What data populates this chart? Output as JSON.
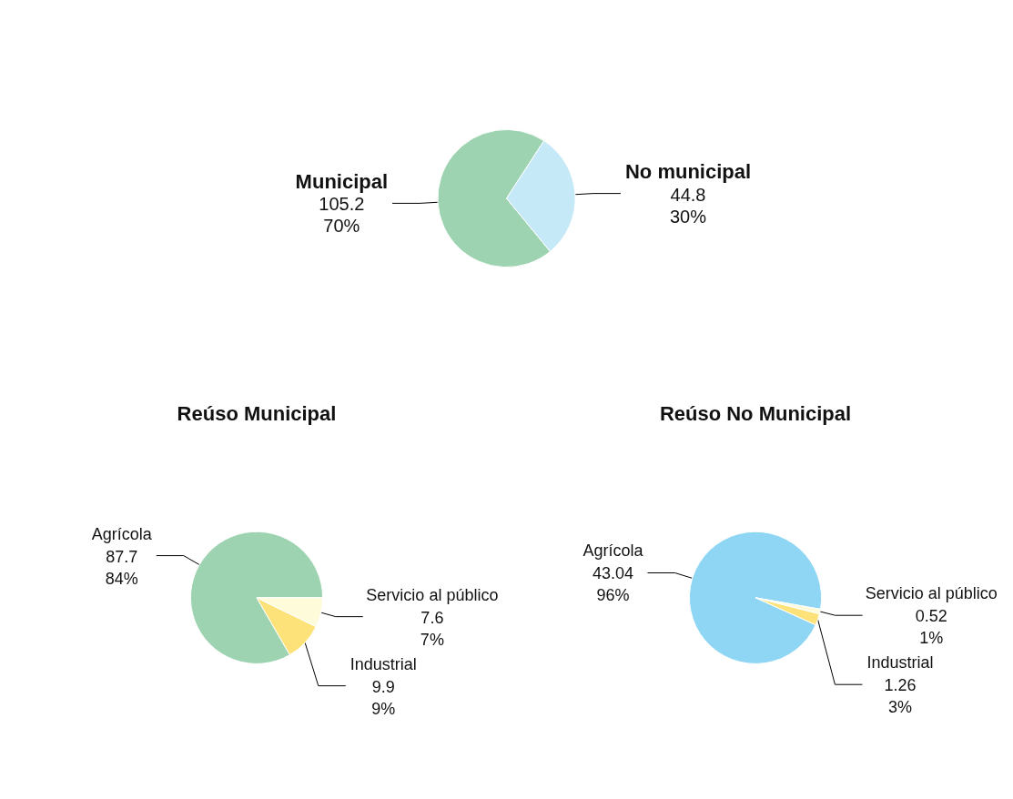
{
  "chart_data": [
    {
      "type": "pie",
      "categories": [
        "Municipal",
        "No municipal"
      ],
      "values": [
        105.2,
        44.8
      ],
      "value_labels": [
        "105.2\n70%",
        "44.8\n30%"
      ],
      "colors": [
        "#9dd3b0",
        "#c6e9f8"
      ],
      "legend": false
    },
    {
      "type": "pie",
      "title": "Reúso Municipal",
      "categories": [
        "Agrícola",
        "Industrial",
        "Servicio al público"
      ],
      "values": [
        87.7,
        9.9,
        7.6
      ],
      "value_labels": [
        "87.7\n84%",
        "9.9\n9%",
        "7.6\n7%"
      ],
      "colors": [
        "#9dd3b0",
        "#fde27a",
        "#fefbdb"
      ],
      "legend": false
    },
    {
      "type": "pie",
      "title": "Reúso No Municipal",
      "categories": [
        "Agrícola",
        "Industrial",
        "Servicio al público"
      ],
      "values": [
        43.04,
        1.26,
        0.52
      ],
      "value_labels": [
        "43.04\n96%",
        "1.26\n3%",
        "0.52\n1%"
      ],
      "colors": [
        "#8fd6f5",
        "#fde27a",
        "#fefbdb"
      ],
      "legend": false
    }
  ]
}
